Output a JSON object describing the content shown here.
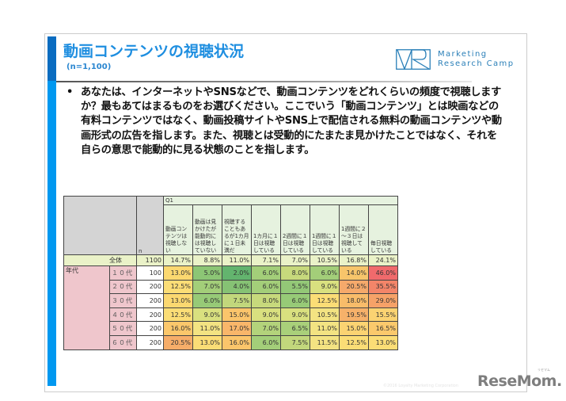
{
  "slide": {
    "title": "動画コンテンツの視聴状況",
    "subtitle": "(n=1,100)",
    "logo": {
      "mark": "VR",
      "line1": "Marketing",
      "line2": "Research Camp"
    },
    "question": {
      "bullet": "•",
      "text": "あなたは、インターネットやSNSなどで、動画コンテンツをどれくらいの頻度で視聴しますか？最もあてはまるものをお選びください。ここでいう「動画コンテンツ」とは映画などの有料コンテンツではなく、動画投稿サイトやSNS上で配信される無料の動画コンテンツや動画形式の広告を指します。また、視聴とは受動的にたまたま見かけたことではなく、それを自らの意思で能動的に見る状態のことを指します。"
    },
    "footer": {
      "copyright": "©2016 Loyalty Marketing Corporation",
      "brand": "ReseMom",
      "brand_ruby": "リセマム",
      "brand_dot": "."
    }
  },
  "table": {
    "q_label": "Q1",
    "n_header": "n",
    "columns": [
      "動画コンテンツは視聴しない",
      "動画は見かけたが能動的には視聴していない",
      "視聴することもあるが1カ月に１日未満だ",
      "1カ月に１日は視聴している",
      "2週間に１日は視聴している",
      "1週間に１日は視聴している",
      "1週間に２～３日は視聴している",
      "毎日視聴している"
    ],
    "total": {
      "label": "全体",
      "n": "1100",
      "values": [
        "14.7%",
        "8.8%",
        "11.0%",
        "7.1%",
        "7.0%",
        "10.5%",
        "16.8%",
        "24.1%"
      ]
    },
    "group_label": "年代",
    "rows": [
      {
        "label": "１０代",
        "n": "100",
        "values": [
          "13.0%",
          "5.0%",
          "2.0%",
          "6.0%",
          "8.0%",
          "6.0%",
          "14.0%",
          "46.0%"
        ]
      },
      {
        "label": "２０代",
        "n": "200",
        "values": [
          "12.5%",
          "7.0%",
          "4.0%",
          "6.0%",
          "5.5%",
          "9.0%",
          "20.5%",
          "35.5%"
        ]
      },
      {
        "label": "３０代",
        "n": "200",
        "values": [
          "13.0%",
          "6.0%",
          "7.5%",
          "8.0%",
          "6.0%",
          "12.5%",
          "18.0%",
          "29.0%"
        ]
      },
      {
        "label": "４０代",
        "n": "200",
        "values": [
          "12.5%",
          "9.0%",
          "15.0%",
          "9.0%",
          "9.0%",
          "10.5%",
          "19.5%",
          "15.5%"
        ]
      },
      {
        "label": "５０代",
        "n": "200",
        "values": [
          "16.0%",
          "11.0%",
          "17.0%",
          "7.0%",
          "6.5%",
          "11.0%",
          "15.0%",
          "16.5%"
        ]
      },
      {
        "label": "６０代",
        "n": "200",
        "values": [
          "20.5%",
          "13.0%",
          "16.0%",
          "6.0%",
          "7.5%",
          "11.5%",
          "12.5%",
          "13.0%"
        ]
      }
    ],
    "heat_colors": {
      "rows": [
        [
          "#fbd870",
          "#8cc675",
          "#63b46e",
          "#a3ce79",
          "#c7d97c",
          "#a3ce79",
          "#f7c56b",
          "#f06a6c"
        ],
        [
          "#fbdd76",
          "#a3ce79",
          "#86c274",
          "#a3ce79",
          "#93c877",
          "#d9e07f",
          "#f5a96b",
          "#f38569"
        ],
        [
          "#fbd870",
          "#97ca77",
          "#c2d77c",
          "#c7d97c",
          "#97ca77",
          "#fbdd76",
          "#f8bc6a",
          "#f6a268"
        ],
        [
          "#fbdd76",
          "#d9e07f",
          "#fbc56b",
          "#d9e07f",
          "#d9e07f",
          "#f3e382",
          "#f6b16a",
          "#fbd372"
        ],
        [
          "#fbc76b",
          "#f3e382",
          "#f9b66a",
          "#b3d37b",
          "#a9d07a",
          "#f3e382",
          "#fbd372",
          "#fbc96c"
        ],
        [
          "#f6ad69",
          "#fbdd76",
          "#fbc56b",
          "#a3ce79",
          "#c2d77c",
          "#f3e382",
          "#fbdd76",
          "#fbdd76"
        ]
      ]
    }
  },
  "chart_data": {
    "type": "table",
    "title": "動画コンテンツの視聴状況 (n=1,100)",
    "categories": [
      "動画コンテンツは視聴しない",
      "動画は見かけたが能動的には視聴していない",
      "視聴することもあるが1カ月に１日未満だ",
      "1カ月に１日は視聴している",
      "2週間に１日は視聴している",
      "1週間に１日は視聴している",
      "1週間に２～３日は視聴している",
      "毎日視聴している"
    ],
    "series": [
      {
        "name": "全体",
        "n": 1100,
        "values": [
          14.7,
          8.8,
          11.0,
          7.1,
          7.0,
          10.5,
          16.8,
          24.1
        ]
      },
      {
        "name": "10代",
        "n": 100,
        "values": [
          13.0,
          5.0,
          2.0,
          6.0,
          8.0,
          6.0,
          14.0,
          46.0
        ]
      },
      {
        "name": "20代",
        "n": 200,
        "values": [
          12.5,
          7.0,
          4.0,
          6.0,
          5.5,
          9.0,
          20.5,
          35.5
        ]
      },
      {
        "name": "30代",
        "n": 200,
        "values": [
          13.0,
          6.0,
          7.5,
          8.0,
          6.0,
          12.5,
          18.0,
          29.0
        ]
      },
      {
        "name": "40代",
        "n": 200,
        "values": [
          12.5,
          9.0,
          15.0,
          9.0,
          9.0,
          10.5,
          19.5,
          15.5
        ]
      },
      {
        "name": "50代",
        "n": 200,
        "values": [
          16.0,
          11.0,
          17.0,
          7.0,
          6.5,
          11.0,
          15.0,
          16.5
        ]
      },
      {
        "name": "60代",
        "n": 200,
        "values": [
          20.5,
          13.0,
          16.0,
          6.0,
          7.5,
          11.5,
          12.5,
          13.0
        ]
      }
    ],
    "unit": "%"
  }
}
